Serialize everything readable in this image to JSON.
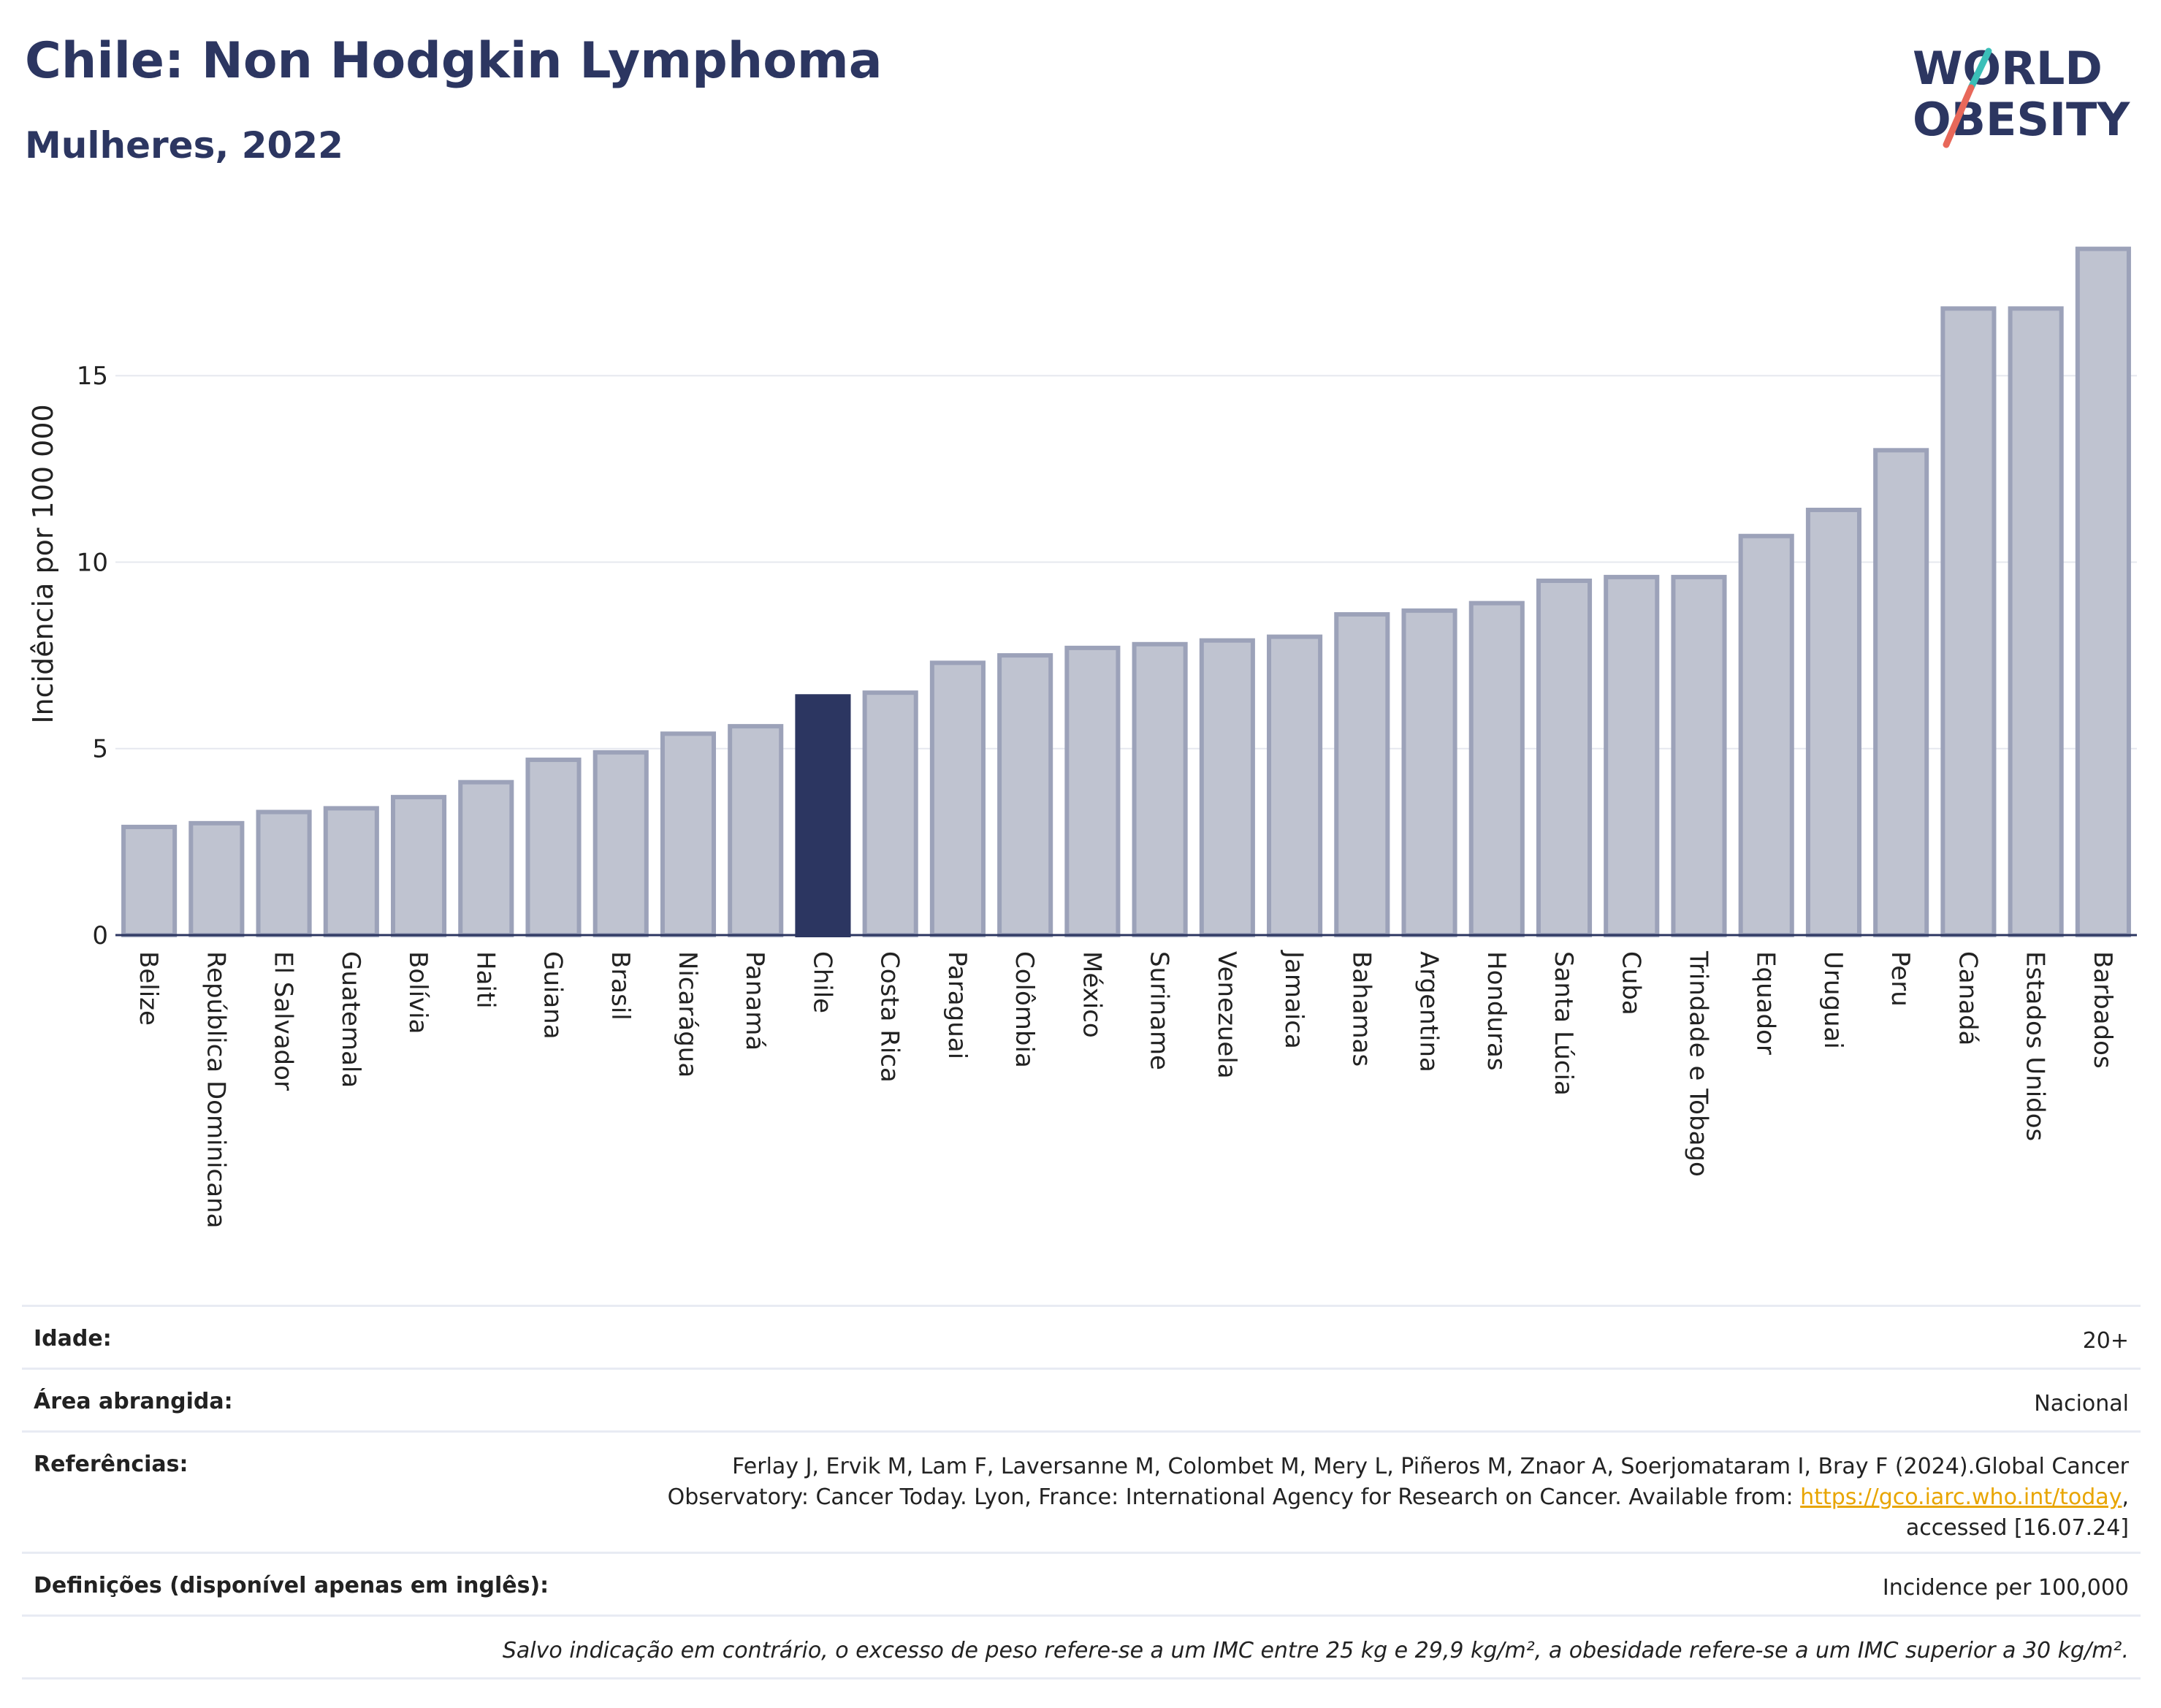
{
  "header": {
    "title": "Chile: Non Hodgkin Lymphoma",
    "subtitle": "Mulheres, 2022"
  },
  "logo": {
    "line1": "WORLD",
    "line2": "OBESITY",
    "colors": {
      "text": "#2c3661",
      "slash_coral": "#e8685a",
      "slash_teal": "#3bbfb8"
    }
  },
  "chart_data": {
    "type": "bar",
    "ylabel": "Incidência por 100 000",
    "ylim": [
      0,
      19
    ],
    "yticks": [
      0,
      5,
      10,
      15
    ],
    "grid": true,
    "highlight": "Chile",
    "colors": {
      "highlight": "#2c3661",
      "bar_fill": "#bfc3d0",
      "bar_edge": "#9ca2b9"
    },
    "categories": [
      "Belize",
      "República Dominicana",
      "El Salvador",
      "Guatemala",
      "Bolívia",
      "Haiti",
      "Guiana",
      "Brasil",
      "Nicarágua",
      "Panamá",
      "Chile",
      "Costa Rica",
      "Paraguai",
      "Colômbia",
      "México",
      "Suriname",
      "Venezuela",
      "Jamaica",
      "Bahamas",
      "Argentina",
      "Honduras",
      "Santa Lúcia",
      "Cuba",
      "Trindade e Tobago",
      "Equador",
      "Uruguai",
      "Peru",
      "Canadá",
      "Estados Unidos",
      "Barbados"
    ],
    "values": [
      2.9,
      3.0,
      3.3,
      3.4,
      3.7,
      4.1,
      4.7,
      4.9,
      5.4,
      5.6,
      6.4,
      6.5,
      7.3,
      7.5,
      7.7,
      7.8,
      7.9,
      8.0,
      8.6,
      8.7,
      8.9,
      9.5,
      9.6,
      9.6,
      10.7,
      11.4,
      13.0,
      16.8,
      16.8,
      18.4
    ]
  },
  "info": {
    "age_label": "Idade:",
    "age_value": "20+",
    "area_label": "Área abrangida:",
    "area_value": "Nacional",
    "refs_label": "Referências:",
    "refs_line1": "Ferlay J, Ervik M, Lam F, Laversanne M, Colombet M, Mery L, Piñeros M, Znaor A, Soerjomataram I, Bray F (2024).Global Cancer",
    "refs_line2_pre": "Observatory: Cancer Today. Lyon, France: International Agency for Research on Cancer. Available from: ",
    "refs_link": "https://gco.iarc.who.int/today",
    "refs_line2_post": ",",
    "refs_line3": "accessed [16.07.24]",
    "defs_label": "Definições (disponível apenas em inglês):",
    "defs_value": "Incidence per 100,000",
    "note": "Salvo indicação em contrário, o excesso de peso refere-se a um IMC entre 25 kg e 29,9 kg/m², a obesidade refere-se a um IMC superior a 30 kg/m²."
  }
}
